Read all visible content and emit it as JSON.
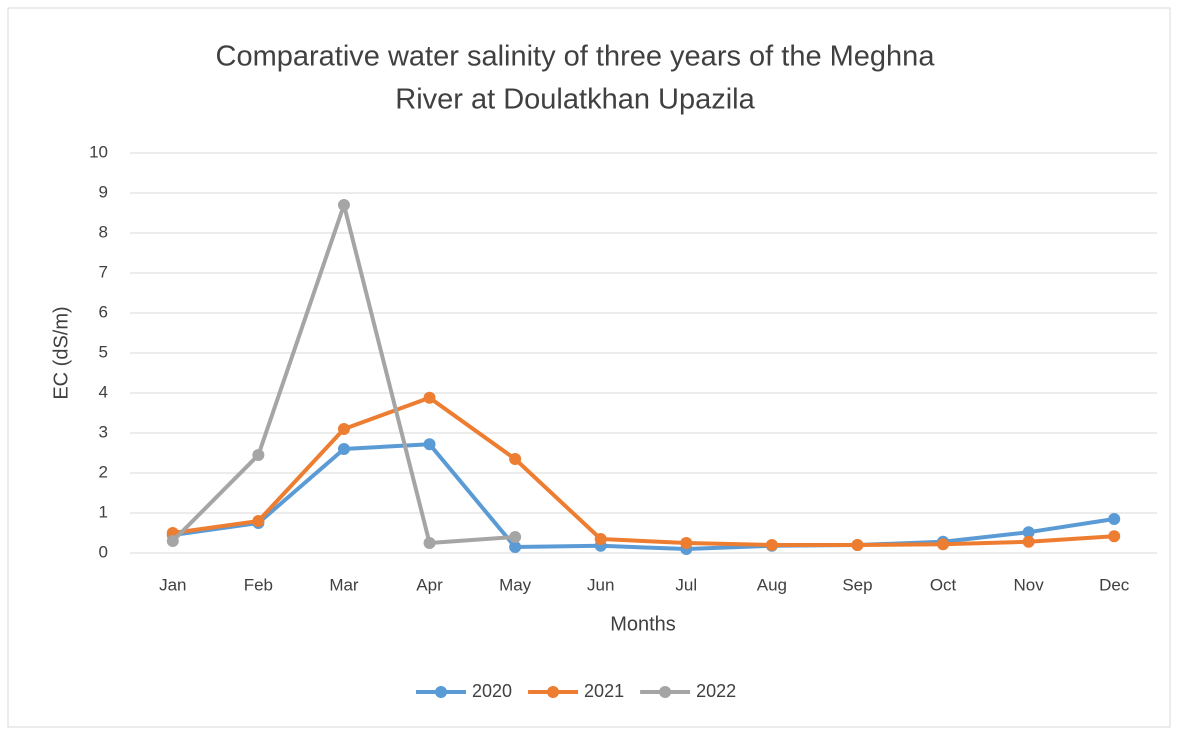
{
  "chart_data": {
    "type": "line",
    "title": [
      "Comparative water salinity of three years of the Meghna",
      "River at Doulatkhan Upazila"
    ],
    "x_label": "Months",
    "y_label": "EC (dS/m)",
    "categories": [
      "Jan",
      "Feb",
      "Mar",
      "Apr",
      "May",
      "Jun",
      "Jul",
      "Aug",
      "Sep",
      "Oct",
      "Nov",
      "Dec"
    ],
    "series": [
      {
        "name": "2020",
        "color": "#5b9bd5",
        "values": [
          0.45,
          0.75,
          2.6,
          2.72,
          0.15,
          0.18,
          0.1,
          0.18,
          0.2,
          0.28,
          0.52,
          0.85
        ]
      },
      {
        "name": "2021",
        "color": "#ed7d31",
        "values": [
          0.5,
          0.8,
          3.1,
          3.88,
          2.35,
          0.35,
          0.25,
          0.2,
          0.2,
          0.22,
          0.28,
          0.42
        ]
      },
      {
        "name": "2022",
        "color": "#a5a5a5",
        "values": [
          0.3,
          2.45,
          8.7,
          0.25,
          0.4,
          null,
          null,
          null,
          null,
          null,
          null,
          null
        ]
      }
    ],
    "ylim": [
      0,
      10
    ],
    "yticks": [
      0,
      1,
      2,
      3,
      4,
      5,
      6,
      7,
      8,
      9,
      10
    ],
    "grid": true,
    "legend": "bottom"
  }
}
